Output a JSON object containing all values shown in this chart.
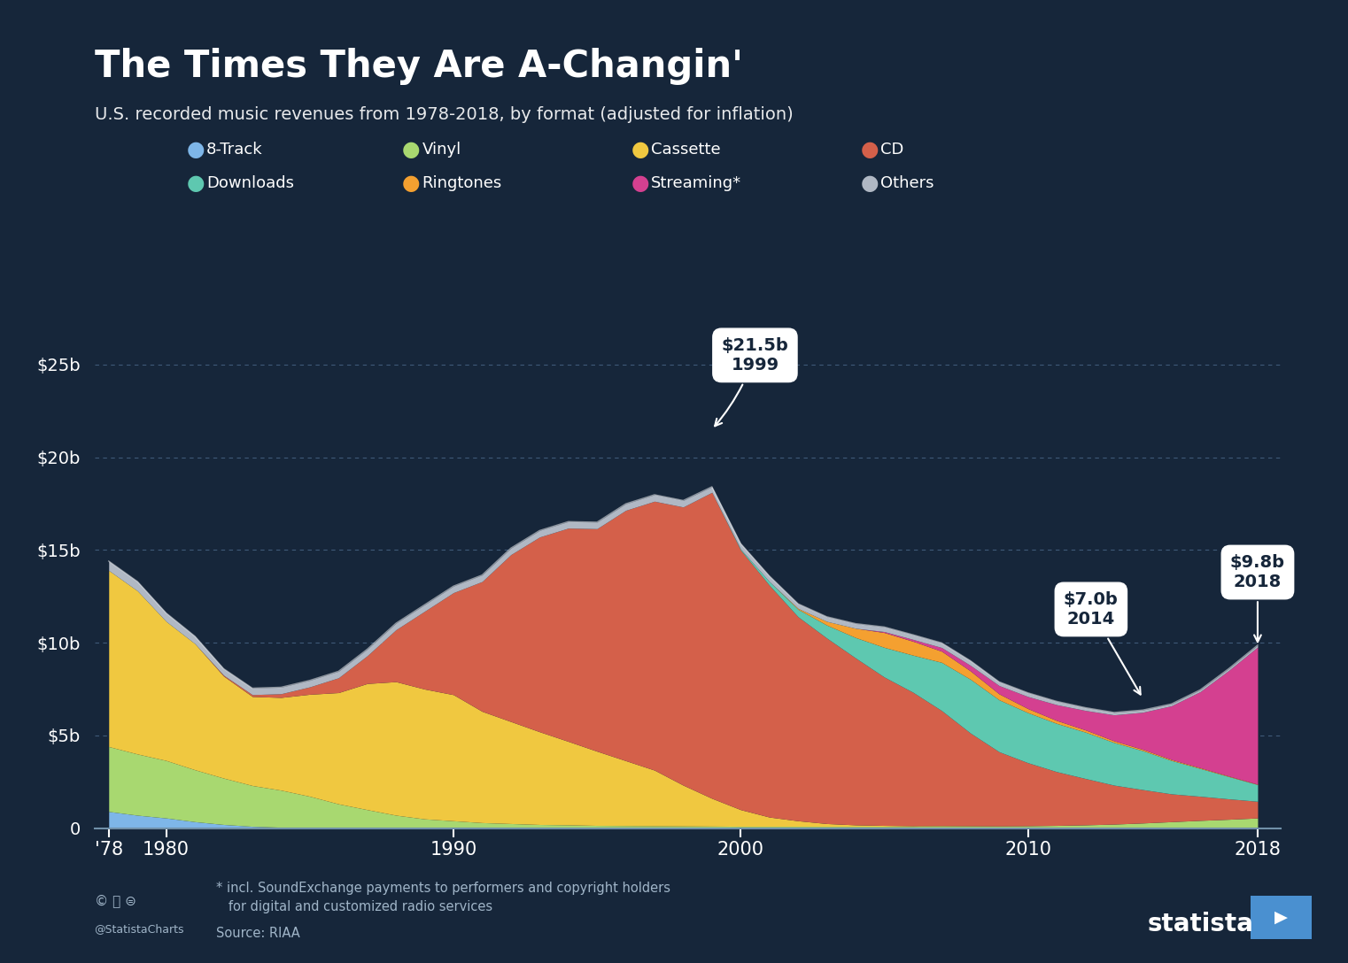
{
  "title": "The Times They Are A-Changin'",
  "subtitle": "U.S. recorded music revenues from 1978-2018, by format (adjusted for inflation)",
  "background_color": "#16263a",
  "text_color": "#ffffff",
  "years": [
    1978,
    1979,
    1980,
    1981,
    1982,
    1983,
    1984,
    1985,
    1986,
    1987,
    1988,
    1989,
    1990,
    1991,
    1992,
    1993,
    1994,
    1995,
    1996,
    1997,
    1998,
    1999,
    2000,
    2001,
    2002,
    2003,
    2004,
    2005,
    2006,
    2007,
    2008,
    2009,
    2010,
    2011,
    2012,
    2013,
    2014,
    2015,
    2016,
    2017,
    2018
  ],
  "series": {
    "8track": {
      "color": "#7eb6e8",
      "label": "8-Track",
      "values": [
        0.9,
        0.7,
        0.55,
        0.35,
        0.2,
        0.1,
        0.05,
        0.02,
        0.01,
        0.0,
        0.0,
        0.0,
        0.0,
        0.0,
        0.0,
        0.0,
        0.0,
        0.0,
        0.0,
        0.0,
        0.0,
        0.0,
        0.0,
        0.0,
        0.0,
        0.0,
        0.0,
        0.0,
        0.0,
        0.0,
        0.0,
        0.0,
        0.0,
        0.0,
        0.0,
        0.0,
        0.0,
        0.0,
        0.0,
        0.0,
        0.0
      ]
    },
    "vinyl": {
      "color": "#a8d870",
      "label": "Vinyl",
      "values": [
        3.5,
        3.3,
        3.1,
        2.8,
        2.5,
        2.2,
        2.0,
        1.7,
        1.3,
        1.0,
        0.7,
        0.5,
        0.4,
        0.3,
        0.25,
        0.2,
        0.18,
        0.15,
        0.14,
        0.13,
        0.12,
        0.11,
        0.1,
        0.1,
        0.1,
        0.1,
        0.1,
        0.1,
        0.1,
        0.12,
        0.12,
        0.12,
        0.13,
        0.15,
        0.18,
        0.22,
        0.28,
        0.35,
        0.42,
        0.48,
        0.55
      ]
    },
    "cassette": {
      "color": "#f0c840",
      "label": "Cassette",
      "values": [
        9.5,
        8.8,
        7.5,
        6.8,
        5.5,
        4.8,
        5.0,
        5.5,
        6.0,
        6.8,
        7.2,
        7.0,
        6.8,
        6.0,
        5.5,
        5.0,
        4.5,
        4.0,
        3.5,
        3.0,
        2.2,
        1.5,
        0.9,
        0.5,
        0.3,
        0.15,
        0.08,
        0.05,
        0.03,
        0.02,
        0.01,
        0.0,
        0.0,
        0.0,
        0.0,
        0.0,
        0.0,
        0.0,
        0.0,
        0.0,
        0.0
      ]
    },
    "cd": {
      "color": "#d4604a",
      "label": "CD",
      "values": [
        0.0,
        0.0,
        0.0,
        0.0,
        0.05,
        0.1,
        0.2,
        0.4,
        0.8,
        1.5,
        2.8,
        4.2,
        5.5,
        7.0,
        9.0,
        10.5,
        11.5,
        12.0,
        13.5,
        14.5,
        15.0,
        16.5,
        14.0,
        12.5,
        11.0,
        10.0,
        9.0,
        8.0,
        7.2,
        6.2,
        5.0,
        4.0,
        3.4,
        2.9,
        2.5,
        2.1,
        1.8,
        1.5,
        1.3,
        1.1,
        0.9
      ]
    },
    "downloads": {
      "color": "#5ec8b0",
      "label": "Downloads",
      "values": [
        0.0,
        0.0,
        0.0,
        0.0,
        0.0,
        0.0,
        0.0,
        0.0,
        0.0,
        0.0,
        0.0,
        0.0,
        0.0,
        0.0,
        0.0,
        0.0,
        0.0,
        0.0,
        0.0,
        0.0,
        0.0,
        0.0,
        0.05,
        0.2,
        0.4,
        0.7,
        1.1,
        1.6,
        2.0,
        2.6,
        2.9,
        2.8,
        2.7,
        2.6,
        2.5,
        2.3,
        2.1,
        1.8,
        1.5,
        1.2,
        0.9
      ]
    },
    "ringtones": {
      "color": "#f4a030",
      "label": "Ringtones",
      "values": [
        0.0,
        0.0,
        0.0,
        0.0,
        0.0,
        0.0,
        0.0,
        0.0,
        0.0,
        0.0,
        0.0,
        0.0,
        0.0,
        0.0,
        0.0,
        0.0,
        0.0,
        0.0,
        0.0,
        0.0,
        0.0,
        0.0,
        0.0,
        0.0,
        0.05,
        0.2,
        0.5,
        0.8,
        0.75,
        0.6,
        0.45,
        0.32,
        0.22,
        0.16,
        0.12,
        0.09,
        0.07,
        0.05,
        0.04,
        0.03,
        0.02
      ]
    },
    "streaming": {
      "color": "#d44090",
      "label": "Streaming*",
      "values": [
        0.0,
        0.0,
        0.0,
        0.0,
        0.0,
        0.0,
        0.0,
        0.0,
        0.0,
        0.0,
        0.0,
        0.0,
        0.0,
        0.0,
        0.0,
        0.0,
        0.0,
        0.0,
        0.0,
        0.0,
        0.0,
        0.0,
        0.0,
        0.0,
        0.0,
        0.0,
        0.0,
        0.05,
        0.1,
        0.2,
        0.3,
        0.45,
        0.65,
        0.85,
        1.05,
        1.4,
        2.0,
        2.9,
        4.1,
        5.7,
        7.4
      ]
    },
    "others": {
      "color": "#b0b8c4",
      "label": "Others",
      "values": [
        0.5,
        0.5,
        0.45,
        0.4,
        0.35,
        0.35,
        0.35,
        0.35,
        0.35,
        0.35,
        0.35,
        0.35,
        0.35,
        0.35,
        0.35,
        0.35,
        0.35,
        0.35,
        0.35,
        0.35,
        0.35,
        0.3,
        0.3,
        0.3,
        0.25,
        0.25,
        0.25,
        0.25,
        0.25,
        0.25,
        0.25,
        0.2,
        0.2,
        0.18,
        0.15,
        0.13,
        0.12,
        0.1,
        0.1,
        0.1,
        0.1
      ]
    }
  },
  "footnote": "* incl. SoundExchange payments to performers and copyright holders\n   for digital and customized radio services",
  "source": "Source: RIAA"
}
